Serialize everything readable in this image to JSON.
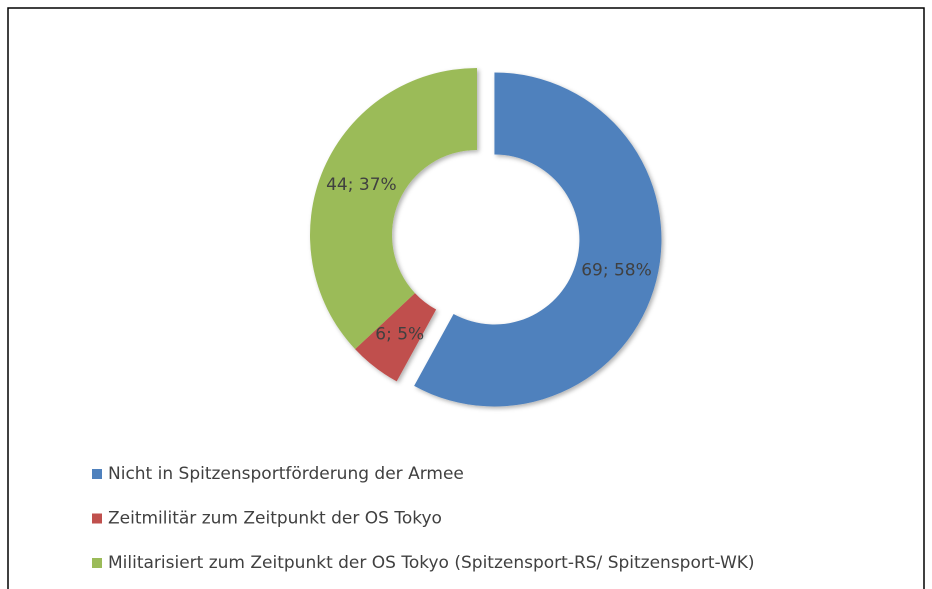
{
  "chart_data": {
    "type": "donut",
    "categories": [
      "Nicht in Spitzensportförderung der Armee",
      "Zeitmilitär zum Zeitpunkt der OS Tokyo",
      "Militarisiert zum Zeitpunkt der OS Tokyo (Spitzensport-RS/ Spitzensport-WK)"
    ],
    "values": [
      69,
      6,
      44
    ],
    "value_labels": [
      "69; 58%",
      "6; 5%",
      "44; 37%"
    ],
    "colors": [
      "#4f81bd",
      "#c0504d",
      "#9bbb59"
    ],
    "explode": [
      true,
      false,
      false
    ],
    "legend": "bottom"
  }
}
